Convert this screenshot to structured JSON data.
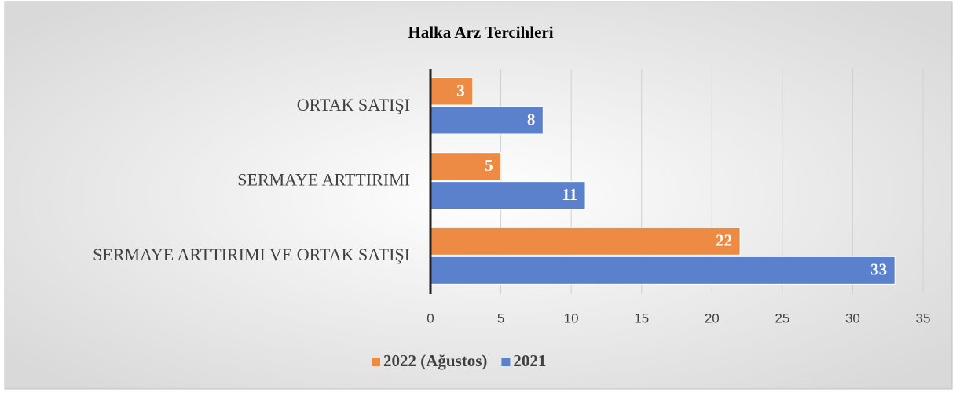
{
  "chart_data": {
    "type": "bar",
    "orientation": "horizontal",
    "title": "Halka Arz Tercihleri",
    "categories": [
      "ORTAK SATIŞI",
      "SERMAYE ARTTIRIMI",
      "SERMAYE ARTTIRIMI VE ORTAK SATIŞI"
    ],
    "series": [
      {
        "name": "2022 (Ağustos)",
        "color": "#ed8b45",
        "values": [
          3,
          5,
          22
        ]
      },
      {
        "name": "2021",
        "color": "#5b80cc",
        "values": [
          8,
          11,
          33
        ]
      }
    ],
    "xlim": [
      0,
      35
    ],
    "xticks": [
      0,
      5,
      10,
      15,
      20,
      25,
      30,
      35
    ],
    "grid": true,
    "legend": "bottom"
  }
}
